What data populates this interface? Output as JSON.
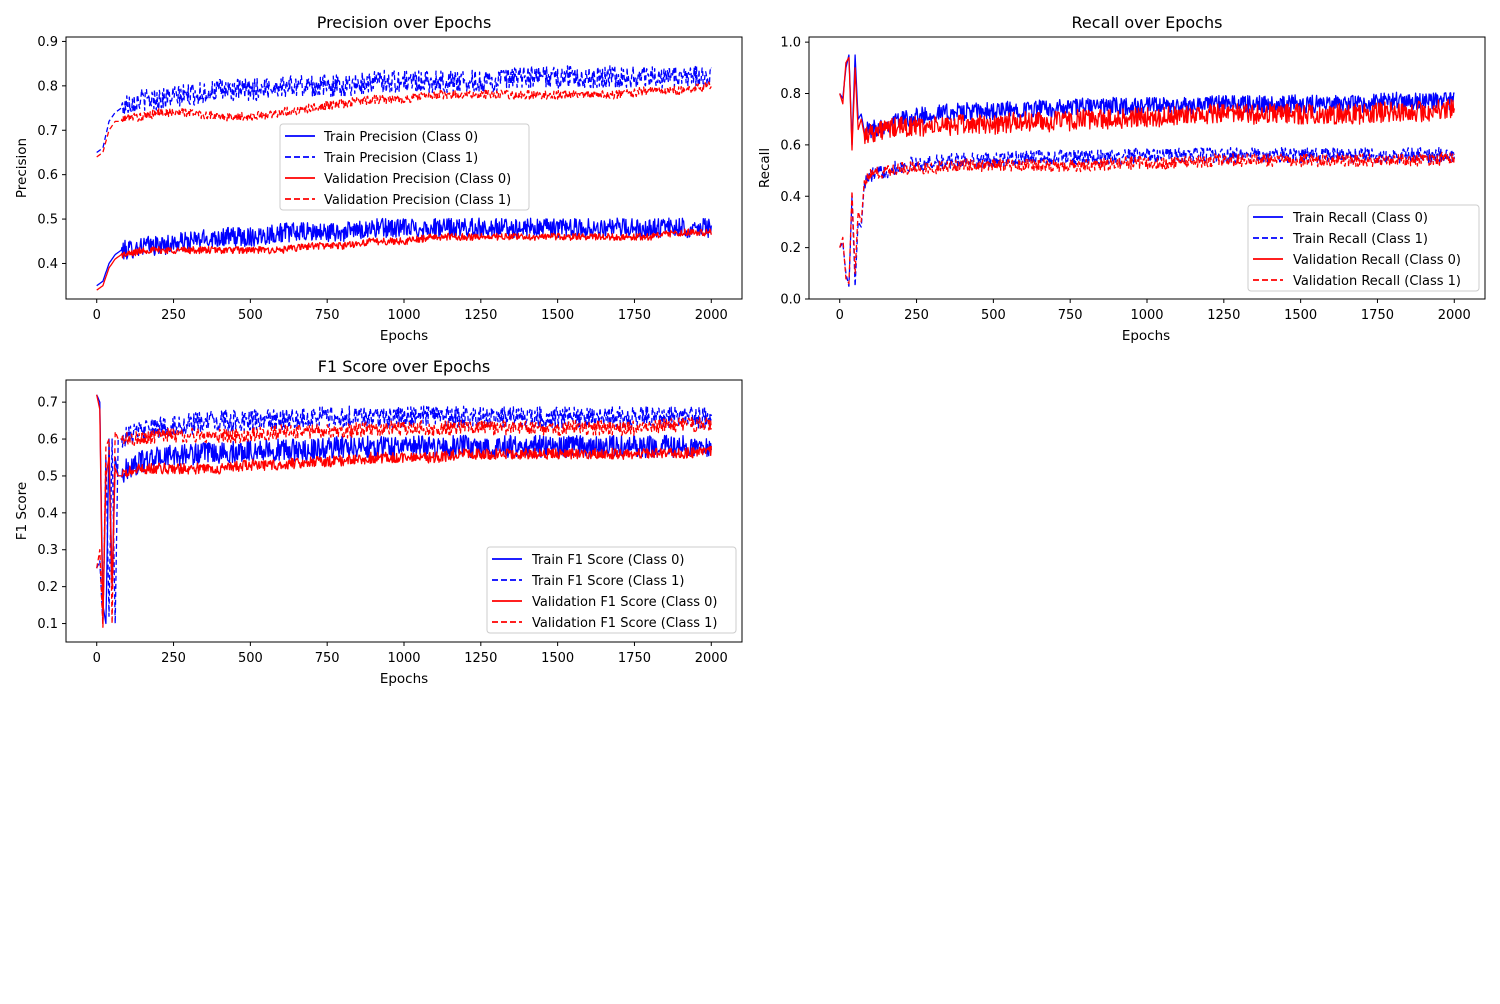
{
  "figure": {
    "background": "#ffffff"
  },
  "chart_data": [
    {
      "type": "line",
      "title": "Precision over Epochs",
      "xlabel": "Epochs",
      "ylabel": "Precision",
      "xlim": [
        -100,
        2100
      ],
      "ylim": [
        0.32,
        0.91
      ],
      "xticks": [
        0,
        250,
        500,
        750,
        1000,
        1250,
        1500,
        1750,
        2000
      ],
      "xtick_labels": [
        "0",
        "250",
        "500",
        "750",
        "1000",
        "1250",
        "1500",
        "1750",
        "2000"
      ],
      "yticks": [
        0.4,
        0.5,
        0.6,
        0.7,
        0.8,
        0.9
      ],
      "ytick_labels": [
        "0.4",
        "0.5",
        "0.6",
        "0.7",
        "0.8",
        "0.9"
      ],
      "grid": false,
      "legend": "center",
      "series": [
        {
          "name": "Train Precision (Class 0)",
          "color": "#0000ff",
          "dash": "solid",
          "x": [
            0,
            20,
            40,
            60,
            80,
            100,
            150,
            200,
            300,
            400,
            500,
            600,
            700,
            800,
            900,
            1000,
            1100,
            1200,
            1300,
            1400,
            1500,
            1600,
            1700,
            1800,
            1900,
            2000
          ],
          "values": [
            0.35,
            0.36,
            0.4,
            0.42,
            0.43,
            0.43,
            0.44,
            0.44,
            0.45,
            0.46,
            0.46,
            0.47,
            0.47,
            0.47,
            0.48,
            0.48,
            0.48,
            0.48,
            0.48,
            0.48,
            0.48,
            0.48,
            0.48,
            0.48,
            0.48,
            0.48
          ],
          "noise": 0.022
        },
        {
          "name": "Train Precision (Class 1)",
          "color": "#0000ff",
          "dash": "dashed",
          "x": [
            0,
            20,
            40,
            60,
            80,
            100,
            150,
            200,
            300,
            400,
            500,
            600,
            700,
            800,
            900,
            1000,
            1100,
            1200,
            1300,
            1400,
            1500,
            1600,
            1700,
            1800,
            1900,
            2000
          ],
          "values": [
            0.65,
            0.66,
            0.72,
            0.74,
            0.75,
            0.76,
            0.77,
            0.77,
            0.78,
            0.79,
            0.79,
            0.8,
            0.8,
            0.8,
            0.81,
            0.81,
            0.81,
            0.81,
            0.81,
            0.82,
            0.82,
            0.82,
            0.82,
            0.82,
            0.82,
            0.82
          ],
          "noise": 0.025
        },
        {
          "name": "Validation Precision (Class 0)",
          "color": "#ff0000",
          "dash": "solid",
          "x": [
            0,
            20,
            40,
            60,
            80,
            100,
            150,
            200,
            300,
            400,
            500,
            600,
            700,
            800,
            900,
            1000,
            1100,
            1200,
            1300,
            1400,
            1500,
            1600,
            1700,
            1800,
            1900,
            2000
          ],
          "values": [
            0.34,
            0.35,
            0.39,
            0.41,
            0.42,
            0.42,
            0.43,
            0.43,
            0.43,
            0.43,
            0.43,
            0.43,
            0.44,
            0.44,
            0.45,
            0.45,
            0.46,
            0.46,
            0.46,
            0.46,
            0.46,
            0.46,
            0.46,
            0.46,
            0.47,
            0.47
          ],
          "noise": 0.008
        },
        {
          "name": "Validation Precision (Class 1)",
          "color": "#ff0000",
          "dash": "dashed",
          "x": [
            0,
            20,
            40,
            60,
            80,
            100,
            150,
            200,
            300,
            400,
            500,
            600,
            700,
            800,
            900,
            1000,
            1100,
            1200,
            1300,
            1400,
            1500,
            1600,
            1700,
            1800,
            1900,
            2000
          ],
          "values": [
            0.64,
            0.65,
            0.7,
            0.72,
            0.72,
            0.73,
            0.73,
            0.74,
            0.74,
            0.73,
            0.73,
            0.74,
            0.75,
            0.76,
            0.77,
            0.77,
            0.78,
            0.78,
            0.78,
            0.78,
            0.78,
            0.78,
            0.78,
            0.79,
            0.79,
            0.8
          ],
          "noise": 0.01
        }
      ]
    },
    {
      "type": "line",
      "title": "Recall over Epochs",
      "xlabel": "Epochs",
      "ylabel": "Recall",
      "xlim": [
        -100,
        2100
      ],
      "ylim": [
        0.0,
        1.02
      ],
      "xticks": [
        0,
        250,
        500,
        750,
        1000,
        1250,
        1500,
        1750,
        2000
      ],
      "xtick_labels": [
        "0",
        "250",
        "500",
        "750",
        "1000",
        "1250",
        "1500",
        "1750",
        "2000"
      ],
      "yticks": [
        0.0,
        0.2,
        0.4,
        0.6,
        0.8,
        1.0
      ],
      "ytick_labels": [
        "0.0",
        "0.2",
        "0.4",
        "0.6",
        "0.8",
        "1.0"
      ],
      "grid": false,
      "legend": "lower right",
      "series": [
        {
          "name": "Train Recall (Class 0)",
          "color": "#0000ff",
          "dash": "solid",
          "x": [
            0,
            10,
            20,
            30,
            40,
            50,
            60,
            70,
            80,
            100,
            150,
            200,
            300,
            400,
            500,
            600,
            700,
            800,
            900,
            1000,
            1100,
            1200,
            1300,
            1400,
            1500,
            1600,
            1700,
            1800,
            1900,
            2000
          ],
          "values": [
            0.8,
            0.78,
            0.9,
            0.95,
            0.6,
            0.95,
            0.7,
            0.72,
            0.65,
            0.66,
            0.68,
            0.7,
            0.72,
            0.73,
            0.73,
            0.74,
            0.74,
            0.75,
            0.75,
            0.75,
            0.75,
            0.76,
            0.76,
            0.76,
            0.76,
            0.76,
            0.76,
            0.77,
            0.77,
            0.77
          ],
          "noise": 0.035
        },
        {
          "name": "Train Recall (Class 1)",
          "color": "#0000ff",
          "dash": "dashed",
          "x": [
            0,
            10,
            20,
            30,
            40,
            50,
            60,
            70,
            80,
            100,
            150,
            200,
            300,
            400,
            500,
            600,
            700,
            800,
            900,
            1000,
            1100,
            1200,
            1300,
            1400,
            1500,
            1600,
            1700,
            1800,
            1900,
            2000
          ],
          "values": [
            0.2,
            0.22,
            0.1,
            0.05,
            0.4,
            0.05,
            0.3,
            0.28,
            0.45,
            0.48,
            0.5,
            0.52,
            0.53,
            0.54,
            0.54,
            0.55,
            0.55,
            0.55,
            0.55,
            0.56,
            0.56,
            0.56,
            0.56,
            0.56,
            0.56,
            0.56,
            0.56,
            0.56,
            0.56,
            0.56
          ],
          "noise": 0.03
        },
        {
          "name": "Validation Recall (Class 0)",
          "color": "#ff0000",
          "dash": "solid",
          "x": [
            0,
            10,
            20,
            30,
            40,
            50,
            60,
            70,
            80,
            100,
            150,
            200,
            300,
            400,
            500,
            600,
            700,
            800,
            900,
            1000,
            1100,
            1200,
            1300,
            1400,
            1500,
            1600,
            1700,
            1800,
            1900,
            2000
          ],
          "values": [
            0.8,
            0.76,
            0.92,
            0.94,
            0.58,
            0.9,
            0.66,
            0.7,
            0.64,
            0.65,
            0.66,
            0.67,
            0.67,
            0.68,
            0.68,
            0.69,
            0.69,
            0.7,
            0.7,
            0.71,
            0.71,
            0.72,
            0.72,
            0.72,
            0.72,
            0.72,
            0.72,
            0.73,
            0.73,
            0.74
          ],
          "noise": 0.04
        },
        {
          "name": "Validation Recall (Class 1)",
          "color": "#ff0000",
          "dash": "dashed",
          "x": [
            0,
            10,
            20,
            30,
            40,
            50,
            60,
            70,
            80,
            100,
            150,
            200,
            300,
            400,
            500,
            600,
            700,
            800,
            900,
            1000,
            1100,
            1200,
            1300,
            1400,
            1500,
            1600,
            1700,
            1800,
            1900,
            2000
          ],
          "values": [
            0.2,
            0.24,
            0.08,
            0.06,
            0.42,
            0.1,
            0.34,
            0.3,
            0.46,
            0.48,
            0.5,
            0.51,
            0.51,
            0.52,
            0.52,
            0.52,
            0.52,
            0.52,
            0.53,
            0.53,
            0.53,
            0.54,
            0.54,
            0.54,
            0.54,
            0.54,
            0.54,
            0.54,
            0.54,
            0.55
          ],
          "noise": 0.025
        }
      ]
    },
    {
      "type": "line",
      "title": "F1 Score over Epochs",
      "xlabel": "Epochs",
      "ylabel": "F1 Score",
      "xlim": [
        -100,
        2100
      ],
      "ylim": [
        0.05,
        0.76
      ],
      "xticks": [
        0,
        250,
        500,
        750,
        1000,
        1250,
        1500,
        1750,
        2000
      ],
      "xtick_labels": [
        "0",
        "250",
        "500",
        "750",
        "1000",
        "1250",
        "1500",
        "1750",
        "2000"
      ],
      "yticks": [
        0.1,
        0.2,
        0.3,
        0.4,
        0.5,
        0.6,
        0.7
      ],
      "ytick_labels": [
        "0.1",
        "0.2",
        "0.3",
        "0.4",
        "0.5",
        "0.6",
        "0.7"
      ],
      "grid": false,
      "legend": "lower right",
      "series": [
        {
          "name": "Train F1 Score (Class 0)",
          "color": "#0000ff",
          "dash": "solid",
          "x": [
            0,
            10,
            20,
            30,
            40,
            50,
            60,
            70,
            80,
            100,
            150,
            200,
            300,
            400,
            500,
            600,
            700,
            800,
            900,
            1000,
            1100,
            1200,
            1300,
            1400,
            1500,
            1600,
            1700,
            1800,
            1900,
            2000
          ],
          "values": [
            0.72,
            0.7,
            0.15,
            0.1,
            0.6,
            0.2,
            0.55,
            0.5,
            0.5,
            0.52,
            0.54,
            0.55,
            0.56,
            0.56,
            0.57,
            0.57,
            0.57,
            0.58,
            0.58,
            0.58,
            0.58,
            0.58,
            0.58,
            0.58,
            0.58,
            0.58,
            0.58,
            0.58,
            0.58,
            0.58
          ],
          "noise": 0.03
        },
        {
          "name": "Train F1 Score (Class 1)",
          "color": "#0000ff",
          "dash": "dashed",
          "x": [
            0,
            10,
            20,
            30,
            40,
            50,
            60,
            70,
            80,
            100,
            150,
            200,
            300,
            400,
            500,
            600,
            700,
            800,
            900,
            1000,
            1100,
            1200,
            1300,
            1400,
            1500,
            1600,
            1700,
            1800,
            1900,
            2000
          ],
          "values": [
            0.25,
            0.27,
            0.1,
            0.55,
            0.12,
            0.6,
            0.1,
            0.6,
            0.6,
            0.61,
            0.62,
            0.63,
            0.64,
            0.65,
            0.65,
            0.65,
            0.66,
            0.66,
            0.66,
            0.66,
            0.66,
            0.66,
            0.66,
            0.66,
            0.66,
            0.66,
            0.66,
            0.66,
            0.66,
            0.66
          ],
          "noise": 0.03
        },
        {
          "name": "Validation F1 Score (Class 0)",
          "color": "#ff0000",
          "dash": "solid",
          "x": [
            0,
            10,
            20,
            30,
            40,
            50,
            60,
            70,
            80,
            100,
            150,
            200,
            300,
            400,
            500,
            600,
            700,
            800,
            900,
            1000,
            1100,
            1200,
            1300,
            1400,
            1500,
            1600,
            1700,
            1800,
            1900,
            2000
          ],
          "values": [
            0.72,
            0.68,
            0.1,
            0.5,
            0.55,
            0.2,
            0.52,
            0.5,
            0.5,
            0.51,
            0.52,
            0.52,
            0.52,
            0.52,
            0.53,
            0.53,
            0.54,
            0.54,
            0.55,
            0.55,
            0.55,
            0.56,
            0.56,
            0.56,
            0.56,
            0.56,
            0.56,
            0.56,
            0.56,
            0.57
          ],
          "noise": 0.015
        },
        {
          "name": "Validation F1 Score (Class 1)",
          "color": "#ff0000",
          "dash": "dashed",
          "x": [
            0,
            10,
            20,
            30,
            40,
            50,
            60,
            70,
            80,
            100,
            150,
            200,
            300,
            400,
            500,
            600,
            700,
            800,
            900,
            1000,
            1100,
            1200,
            1300,
            1400,
            1500,
            1600,
            1700,
            1800,
            1900,
            2000
          ],
          "values": [
            0.25,
            0.3,
            0.09,
            0.58,
            0.6,
            0.1,
            0.62,
            0.6,
            0.6,
            0.6,
            0.6,
            0.61,
            0.61,
            0.61,
            0.61,
            0.62,
            0.62,
            0.62,
            0.63,
            0.63,
            0.63,
            0.63,
            0.63,
            0.63,
            0.63,
            0.63,
            0.63,
            0.63,
            0.64,
            0.64
          ],
          "noise": 0.02
        }
      ]
    }
  ]
}
